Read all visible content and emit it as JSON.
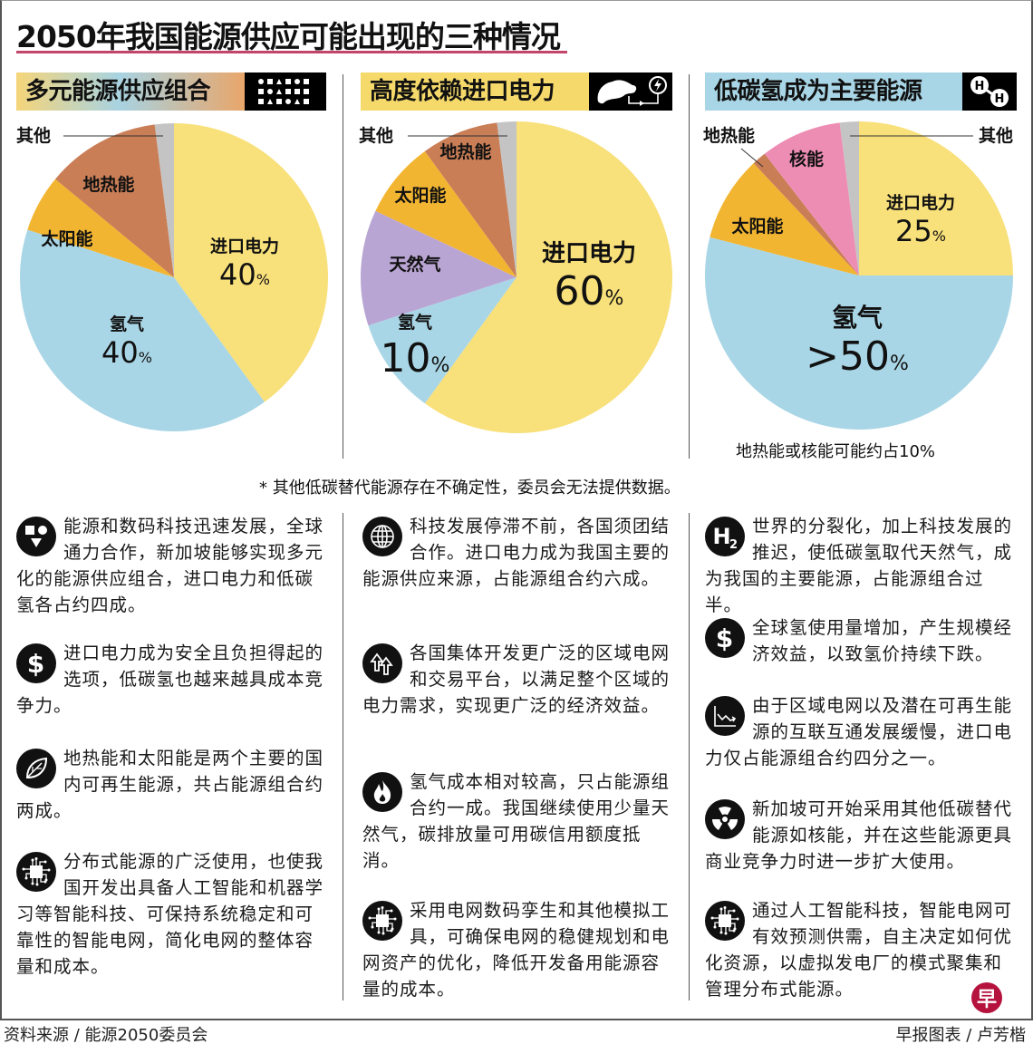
{
  "title": "2050年我国能源供应可能出现的三种情况",
  "colors": {
    "imported_power": "#f8e07a",
    "hydrogen": "#a9d6e6",
    "solar": "#f2b531",
    "geothermal": "#c97e56",
    "natural_gas": "#b9a5d4",
    "nuclear": "#ee8db3",
    "other": "#c4c4c4",
    "title_rule": "#c2456a",
    "logo": "#b5123e"
  },
  "scenarios": [
    {
      "heading": "多元能源供应组合",
      "header_icon": "shapes-grid-icon",
      "header_gradient": [
        "#f5d57a",
        "#a8d3e2",
        "#e9a66a"
      ]
    },
    {
      "heading": "高度依赖进口电力",
      "header_icon": "map-power-import-icon",
      "header_gradient": [
        "#f5d96a",
        "#f5d96a",
        "#f5d96a"
      ]
    },
    {
      "heading": "低碳氢成为主要能源",
      "header_icon": "hydrogen-molecule-icon",
      "header_gradient": [
        "#a9d6e6",
        "#a9d6e6",
        "#a9d6e6"
      ],
      "note": "地热能或核能可能约占10%"
    }
  ],
  "chart_data": [
    {
      "type": "pie",
      "title": "多元能源供应组合",
      "slices": [
        {
          "label": "进口电力",
          "value": 40,
          "display": "40",
          "color_key": "imported_power"
        },
        {
          "label": "氢气",
          "value": 40,
          "display": "40",
          "color_key": "hydrogen"
        },
        {
          "label": "太阳能",
          "value": 6,
          "display": "",
          "color_key": "solar"
        },
        {
          "label": "地热能",
          "value": 12,
          "display": "",
          "color_key": "geothermal"
        },
        {
          "label": "其他",
          "value": 2,
          "display": "",
          "color_key": "other"
        }
      ]
    },
    {
      "type": "pie",
      "title": "高度依赖进口电力",
      "slices": [
        {
          "label": "进口电力",
          "value": 60,
          "display": "60",
          "color_key": "imported_power"
        },
        {
          "label": "氢气",
          "value": 10,
          "display": "10",
          "color_key": "hydrogen"
        },
        {
          "label": "天然气",
          "value": 12,
          "display": "",
          "color_key": "natural_gas"
        },
        {
          "label": "太阳能",
          "value": 8,
          "display": "",
          "color_key": "solar"
        },
        {
          "label": "地热能",
          "value": 8,
          "display": "",
          "color_key": "geothermal"
        },
        {
          "label": "其他",
          "value": 2,
          "display": "",
          "color_key": "other"
        }
      ]
    },
    {
      "type": "pie",
      "title": "低碳氢成为主要能源",
      "slices": [
        {
          "label": "进口电力",
          "value": 25,
          "display": "25",
          "color_key": "imported_power"
        },
        {
          "label": "氢气",
          "value": 54,
          "display": ">50",
          "color_key": "hydrogen"
        },
        {
          "label": "太阳能",
          "value": 9,
          "display": "",
          "color_key": "solar"
        },
        {
          "label": "地热能",
          "value": 1.5,
          "display": "",
          "color_key": "geothermal"
        },
        {
          "label": "核能",
          "value": 8.5,
          "display": "",
          "color_key": "nuclear"
        },
        {
          "label": "其他",
          "value": 2,
          "display": "",
          "color_key": "other"
        }
      ]
    }
  ],
  "footnote": "* 其他低碳替代能源存在不确定性，委员会无法提供数据。",
  "bullets": [
    [
      {
        "icon": "shapes-icon",
        "text": "能源和数码科技迅速发展，全球通力合作，新加坡能够实现多元化的能源供应组合，进口电力和低碳氢各占约四成。"
      },
      {
        "icon": "dollar-icon",
        "text": "进口电力成为安全且负担得起的选项，低碳氢也越来越具成本竞争力。"
      },
      {
        "icon": "leaf-icon",
        "text": "地热能和太阳能是两个主要的国内可再生能源，共占能源组合约两成。"
      },
      {
        "icon": "circuit-chip-icon",
        "text": "分布式能源的广泛使用，也使我国开发出具备人工智能和机器学习等智能科技、可保持系统稳定和可靠性的智能电网，简化电网的整体容量和成本。"
      }
    ],
    [
      {
        "icon": "globe-icon",
        "text": "科技发展停滞不前，各国须团结合作。进口电力成为我国主要的能源供应来源，占能源组合约六成。"
      },
      {
        "icon": "up-arrows-icon",
        "text": "各国集体开发更广泛的区域电网和交易平台，以满足整个区域的电力需求，实现更广泛的经济效益。"
      },
      {
        "icon": "flame-icon",
        "text": "氢气成本相对较高，只占能源组合约一成。我国继续使用少量天然气，碳排放量可用碳信用额度抵消。"
      },
      {
        "icon": "circuit-chip-icon",
        "text": "采用电网数码孪生和其他模拟工具，可确保电网的稳健规划和电网资产的优化，降低开发备用能源容量的成本。"
      }
    ],
    [
      {
        "icon": "h2-icon",
        "text": "世界的分裂化，加上科技发展的推迟，使低碳氢取代天然气，成为我国的主要能源，占能源组合过半。"
      },
      {
        "icon": "dollar-icon",
        "text": "全球氢使用量增加，产生规模经济效益，以致氢价持续下跌。"
      },
      {
        "icon": "declining-chart-icon",
        "text": "由于区域电网以及潜在可再生能源的互联互通发展缓慢，进口电力仅占能源组合约四分之一。"
      },
      {
        "icon": "radiation-icon",
        "text": "新加坡可开始采用其他低碳替代能源如核能，并在这些能源更具商业竞争力时进一步扩大使用。"
      },
      {
        "icon": "circuit-chip-icon",
        "text": "通过人工智能科技，智能电网可有效预测供需，自主决定如何优化资源，以虚拟发电厂的模式聚集和管理分布式能源。"
      }
    ]
  ],
  "footer": {
    "source": "资料来源 / 能源2050委员会",
    "credit": "早报图表 / 卢芳楷",
    "logo_text": "早"
  }
}
